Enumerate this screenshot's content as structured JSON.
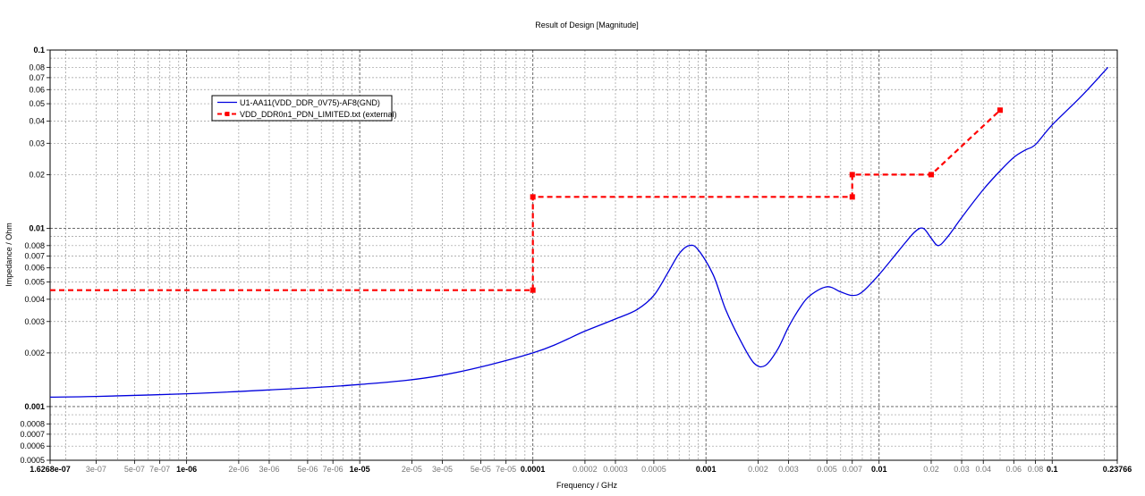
{
  "chart_data": {
    "type": "line",
    "title": "Result of Design [Magnitude]",
    "xlabel": "Frequency / GHz",
    "ylabel": "Impedance / Ohm",
    "x_scale": "log",
    "y_scale": "log",
    "xlim": [
      1.6268e-07,
      0.23766
    ],
    "ylim": [
      0.0005,
      0.1
    ],
    "grid": true,
    "legend": "top-left",
    "x_ticks_major": [
      {
        "v": 1.6268e-07,
        "label": "1.6268e-07"
      },
      {
        "v": 1e-06,
        "label": "1e-06"
      },
      {
        "v": 1e-05,
        "label": "1e-05"
      },
      {
        "v": 0.0001,
        "label": "0.0001"
      },
      {
        "v": 0.001,
        "label": "0.001"
      },
      {
        "v": 0.01,
        "label": "0.01"
      },
      {
        "v": 0.1,
        "label": "0.1"
      },
      {
        "v": 0.23766,
        "label": "0.23766"
      }
    ],
    "x_ticks_minor": [
      {
        "v": 3e-07,
        "label": "3e-07"
      },
      {
        "v": 5e-07,
        "label": "5e-07"
      },
      {
        "v": 7e-07,
        "label": "7e-07"
      },
      {
        "v": 2e-06,
        "label": "2e-06"
      },
      {
        "v": 3e-06,
        "label": "3e-06"
      },
      {
        "v": 5e-06,
        "label": "5e-06"
      },
      {
        "v": 7e-06,
        "label": "7e-06"
      },
      {
        "v": 2e-05,
        "label": "2e-05"
      },
      {
        "v": 3e-05,
        "label": "3e-05"
      },
      {
        "v": 5e-05,
        "label": "5e-05"
      },
      {
        "v": 7e-05,
        "label": "7e-05"
      },
      {
        "v": 0.0002,
        "label": "0.0002"
      },
      {
        "v": 0.0003,
        "label": "0.0003"
      },
      {
        "v": 0.0005,
        "label": "0.0005"
      },
      {
        "v": 0.002,
        "label": "0.002"
      },
      {
        "v": 0.003,
        "label": "0.003"
      },
      {
        "v": 0.005,
        "label": "0.005"
      },
      {
        "v": 0.007,
        "label": "0.007"
      },
      {
        "v": 0.02,
        "label": "0.02"
      },
      {
        "v": 0.03,
        "label": "0.03"
      },
      {
        "v": 0.04,
        "label": "0.04"
      },
      {
        "v": 0.06,
        "label": "0.06"
      },
      {
        "v": 0.08,
        "label": "0.08"
      }
    ],
    "y_ticks": [
      {
        "v": 0.1,
        "label": "0.1",
        "major": true
      },
      {
        "v": 0.08,
        "label": "0.08"
      },
      {
        "v": 0.07,
        "label": "0.07"
      },
      {
        "v": 0.06,
        "label": "0.06"
      },
      {
        "v": 0.05,
        "label": "0.05"
      },
      {
        "v": 0.04,
        "label": "0.04"
      },
      {
        "v": 0.03,
        "label": "0.03"
      },
      {
        "v": 0.02,
        "label": "0.02"
      },
      {
        "v": 0.01,
        "label": "0.01",
        "major": true
      },
      {
        "v": 0.008,
        "label": "0.008"
      },
      {
        "v": 0.007,
        "label": "0.007"
      },
      {
        "v": 0.006,
        "label": "0.006"
      },
      {
        "v": 0.005,
        "label": "0.005"
      },
      {
        "v": 0.004,
        "label": "0.004"
      },
      {
        "v": 0.003,
        "label": "0.003"
      },
      {
        "v": 0.002,
        "label": "0.002"
      },
      {
        "v": 0.001,
        "label": "0.001",
        "major": true
      },
      {
        "v": 0.0008,
        "label": "0.0008"
      },
      {
        "v": 0.0007,
        "label": "0.0007"
      },
      {
        "v": 0.0006,
        "label": "0.0006"
      },
      {
        "v": 0.0005,
        "label": "0.0005"
      }
    ],
    "series": [
      {
        "name": "U1-AA11(VDD_DDR_0V75)-AF8(GND)",
        "color": "#0000dd",
        "style": "solid",
        "markers": false,
        "points": [
          [
            1.6268e-07,
            0.00113
          ],
          [
            3e-07,
            0.00114
          ],
          [
            1e-06,
            0.00118
          ],
          [
            3e-06,
            0.00124
          ],
          [
            1e-05,
            0.00133
          ],
          [
            3e-05,
            0.0015
          ],
          [
            0.0001,
            0.002
          ],
          [
            0.0002,
            0.00265
          ],
          [
            0.0003,
            0.0031
          ],
          [
            0.0004,
            0.0035
          ],
          [
            0.0005,
            0.0042
          ],
          [
            0.0006,
            0.0056
          ],
          [
            0.0007,
            0.0072
          ],
          [
            0.0008,
            0.008
          ],
          [
            0.0009,
            0.0076
          ],
          [
            0.0011,
            0.0055
          ],
          [
            0.0013,
            0.0035
          ],
          [
            0.0016,
            0.0023
          ],
          [
            0.0019,
            0.00175
          ],
          [
            0.0022,
            0.0017
          ],
          [
            0.0026,
            0.0021
          ],
          [
            0.003,
            0.0028
          ],
          [
            0.0035,
            0.0036
          ],
          [
            0.004,
            0.0042
          ],
          [
            0.005,
            0.0047
          ],
          [
            0.006,
            0.0044
          ],
          [
            0.007,
            0.0042
          ],
          [
            0.008,
            0.0044
          ],
          [
            0.01,
            0.0055
          ],
          [
            0.013,
            0.0075
          ],
          [
            0.016,
            0.0095
          ],
          [
            0.018,
            0.01
          ],
          [
            0.02,
            0.0088
          ],
          [
            0.022,
            0.008
          ],
          [
            0.025,
            0.009
          ],
          [
            0.03,
            0.0115
          ],
          [
            0.04,
            0.0165
          ],
          [
            0.05,
            0.021
          ],
          [
            0.06,
            0.025
          ],
          [
            0.07,
            0.0275
          ],
          [
            0.08,
            0.0295
          ],
          [
            0.1,
            0.038
          ],
          [
            0.15,
            0.056
          ],
          [
            0.21,
            0.08
          ]
        ]
      },
      {
        "name": "VDD_DDR0n1_PDN_LIMITED.txt (external)",
        "color": "#ff0000",
        "style": "dashed",
        "markers": true,
        "points": [
          [
            1.6268e-07,
            0.0045
          ],
          [
            0.0001,
            0.0045
          ],
          [
            0.0001,
            0.015
          ],
          [
            0.007,
            0.015
          ],
          [
            0.007,
            0.02
          ],
          [
            0.02,
            0.02
          ],
          [
            0.05,
            0.046
          ]
        ]
      }
    ]
  }
}
